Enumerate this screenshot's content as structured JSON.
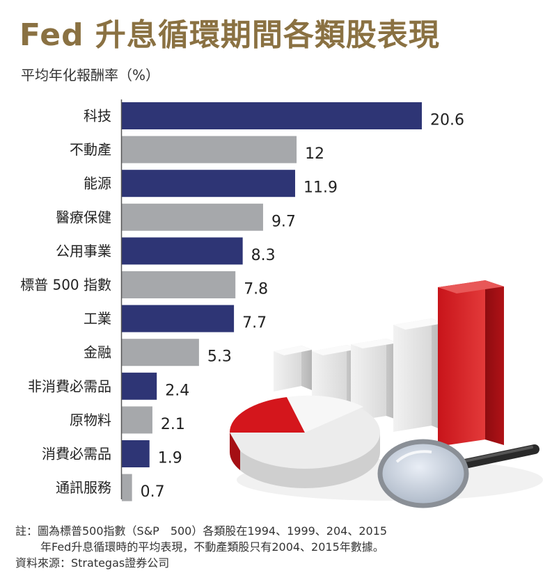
{
  "title": "Fed 升息循環期間各類股表現",
  "subtitle": "平均年化報酬率（%）",
  "note_line1": "註：圖為標普500指數（S&P　500）各類股在1994、1999、204、2015",
  "note_line2": "年Fed升息循環時的平均表現，不動產類股只有2004、2015年數據。",
  "source": "資料來源：Strategas證券公司",
  "colors": {
    "title": "#8a7142",
    "navy": "#2e3575",
    "gray": "#a6a8ab",
    "axis": "#555555"
  },
  "chart_data": {
    "type": "bar",
    "orientation": "horizontal",
    "categories": [
      "科技",
      "不動產",
      "能源",
      "醫療保健",
      "公用事業",
      "標普 500 指數",
      "工業",
      "金融",
      "非消費必需品",
      "原物料",
      "消費必需品",
      "通訊服務"
    ],
    "values": [
      20.6,
      12,
      11.9,
      9.7,
      8.3,
      7.8,
      7.7,
      5.3,
      2.4,
      2.1,
      1.9,
      0.7
    ],
    "value_labels": [
      "20.6",
      "12",
      "11.9",
      "9.7",
      "8.3",
      "7.8",
      "7.7",
      "5.3",
      "2.4",
      "2.1",
      "1.9",
      "0.7"
    ],
    "bar_colors": [
      "navy",
      "gray",
      "navy",
      "gray",
      "navy",
      "gray",
      "navy",
      "gray",
      "navy",
      "gray",
      "navy",
      "gray"
    ],
    "xlim": [
      0,
      20.6
    ]
  }
}
